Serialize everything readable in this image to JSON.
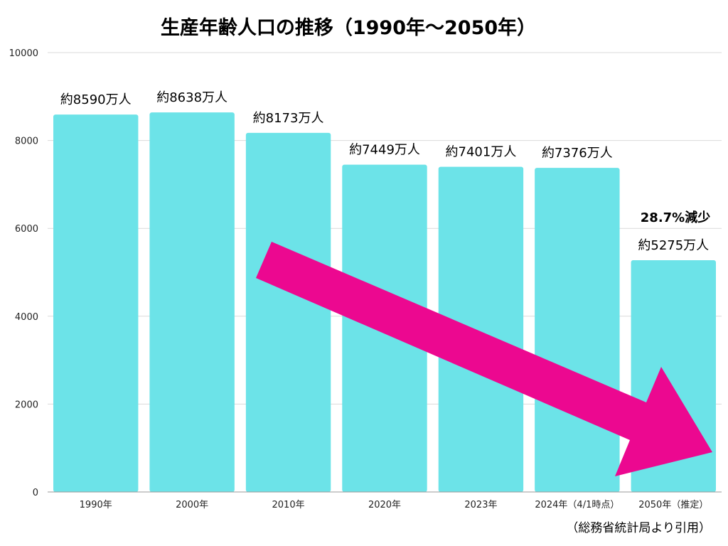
{
  "chart_data": {
    "type": "bar",
    "title": "生産年齢人口の推移（1990年〜2050年）",
    "categories": [
      "1990年",
      "2000年",
      "2010年",
      "2020年",
      "2023年",
      "2024年（4/1時点）",
      "2050年（推定）"
    ],
    "values": [
      8590,
      8638,
      8173,
      7449,
      7401,
      7376,
      5275
    ],
    "data_labels": [
      "約8590万人",
      "約8638万人",
      "約8173万人",
      "約7449万人",
      "約7401万人",
      "約7376万人",
      "約5275万人"
    ],
    "ylim": [
      0,
      10000
    ],
    "yticks": [
      0,
      2000,
      4000,
      6000,
      8000,
      10000
    ],
    "xlabel": "",
    "ylabel": "",
    "grid": true,
    "annotation": "28.7%減少",
    "source": "（総務省統計局より引用）",
    "bar_color": "#6ce3e8",
    "arrow_color": "#ec0890"
  }
}
